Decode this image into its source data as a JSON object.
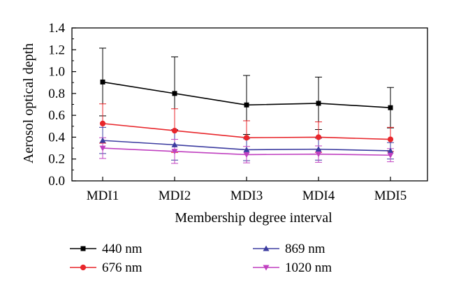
{
  "chart_data": {
    "type": "line",
    "title": "",
    "xlabel": "Membership degree interval",
    "ylabel": "Aerosol optical depth",
    "categories": [
      "MDI1",
      "MDI2",
      "MDI3",
      "MDI4",
      "MDI5"
    ],
    "ylim": [
      0.0,
      1.4
    ],
    "yticks": [
      0.0,
      0.2,
      0.4,
      0.6,
      0.8,
      1.0,
      1.2,
      1.4
    ],
    "ytick_labels": [
      "0.0",
      "0.2",
      "0.4",
      "0.6",
      "0.8",
      "1.0",
      "1.2",
      "1.4"
    ],
    "grid": false,
    "legend_position": "bottom",
    "series": [
      {
        "name": "440 nm",
        "color": "#000000",
        "marker": "square",
        "values": [
          0.905,
          0.8,
          0.695,
          0.71,
          0.67
        ],
        "errors": [
          0.31,
          0.335,
          0.27,
          0.24,
          0.185
        ]
      },
      {
        "name": "676 nm",
        "color": "#e8262b",
        "marker": "circle",
        "values": [
          0.525,
          0.46,
          0.395,
          0.4,
          0.38
        ],
        "errors": [
          0.18,
          0.2,
          0.155,
          0.14,
          0.11
        ]
      },
      {
        "name": "869 nm",
        "color": "#3c3ca0",
        "marker": "triangle-up",
        "values": [
          0.37,
          0.33,
          0.285,
          0.29,
          0.275
        ],
        "errors": [
          0.12,
          0.14,
          0.1,
          0.1,
          0.075
        ]
      },
      {
        "name": "1020 nm",
        "color": "#c040c0",
        "marker": "triangle-down",
        "values": [
          0.3,
          0.27,
          0.24,
          0.245,
          0.235
        ],
        "errors": [
          0.095,
          0.11,
          0.075,
          0.075,
          0.06
        ]
      }
    ]
  }
}
